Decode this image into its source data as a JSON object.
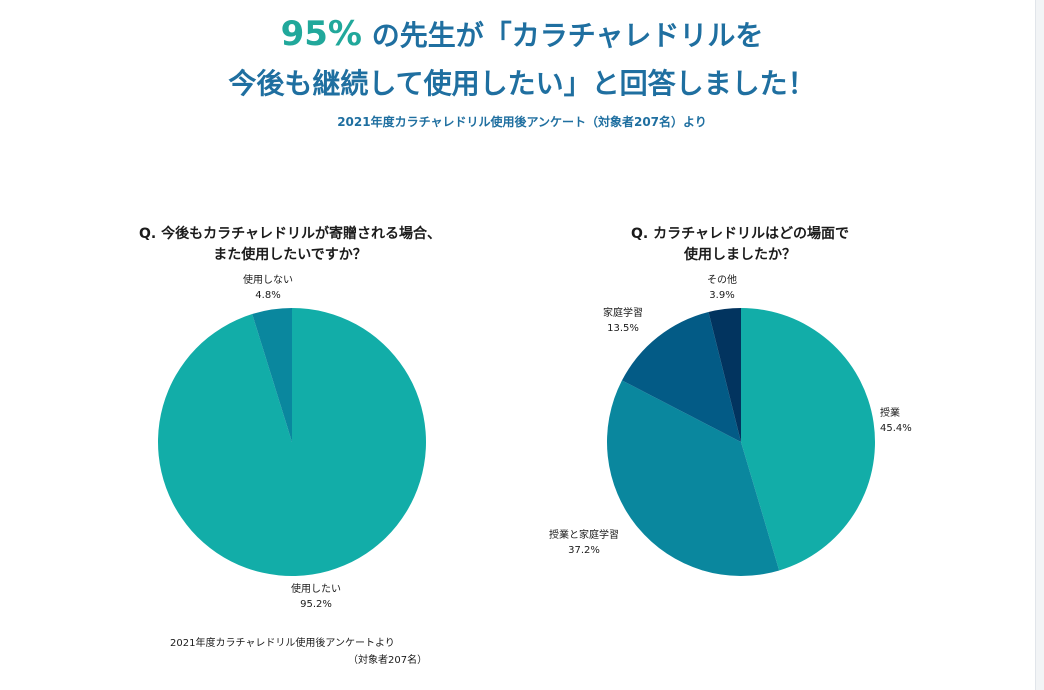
{
  "header": {
    "line1_pct": "95%",
    "line1_rest": "の先生が「カラチャレドリルを",
    "line2": "今後も継続して使用したい」と回答しました！",
    "subtitle": "2021年度カラチャレドリル使用後アンケート（対象者207名）より"
  },
  "footer": {
    "source_line1": "2021年度カラチャレドリル使用後アンケートより",
    "source_line2": "（対象者207名）"
  },
  "chart_data": [
    {
      "type": "pie",
      "title_line1": "Q. 今後もカラチャレドリルが寄贈される場合、",
      "title_line2": "また使用したいですか？",
      "slices": [
        {
          "label": "使用したい",
          "value_text": "95.2%",
          "value": 95.2,
          "color": "#12ada8"
        },
        {
          "label": "使用しない",
          "value_text": "4.8%",
          "value": 4.8,
          "color": "#0a879e"
        }
      ]
    },
    {
      "type": "pie",
      "title_line1": "Q. カラチャレドリルはどの場面で",
      "title_line2": "使用しましたか？",
      "slices": [
        {
          "label": "授業",
          "value_text": "45.4%",
          "value": 45.4,
          "color": "#12ada8"
        },
        {
          "label": "授業と家庭学習",
          "value_text": "37.2%",
          "value": 37.2,
          "color": "#0a879e"
        },
        {
          "label": "家庭学習",
          "value_text": "13.5%",
          "value": 13.5,
          "color": "#035b86"
        },
        {
          "label": "その他",
          "value_text": "3.9%",
          "value": 3.9,
          "color": "#02345f"
        }
      ]
    }
  ]
}
